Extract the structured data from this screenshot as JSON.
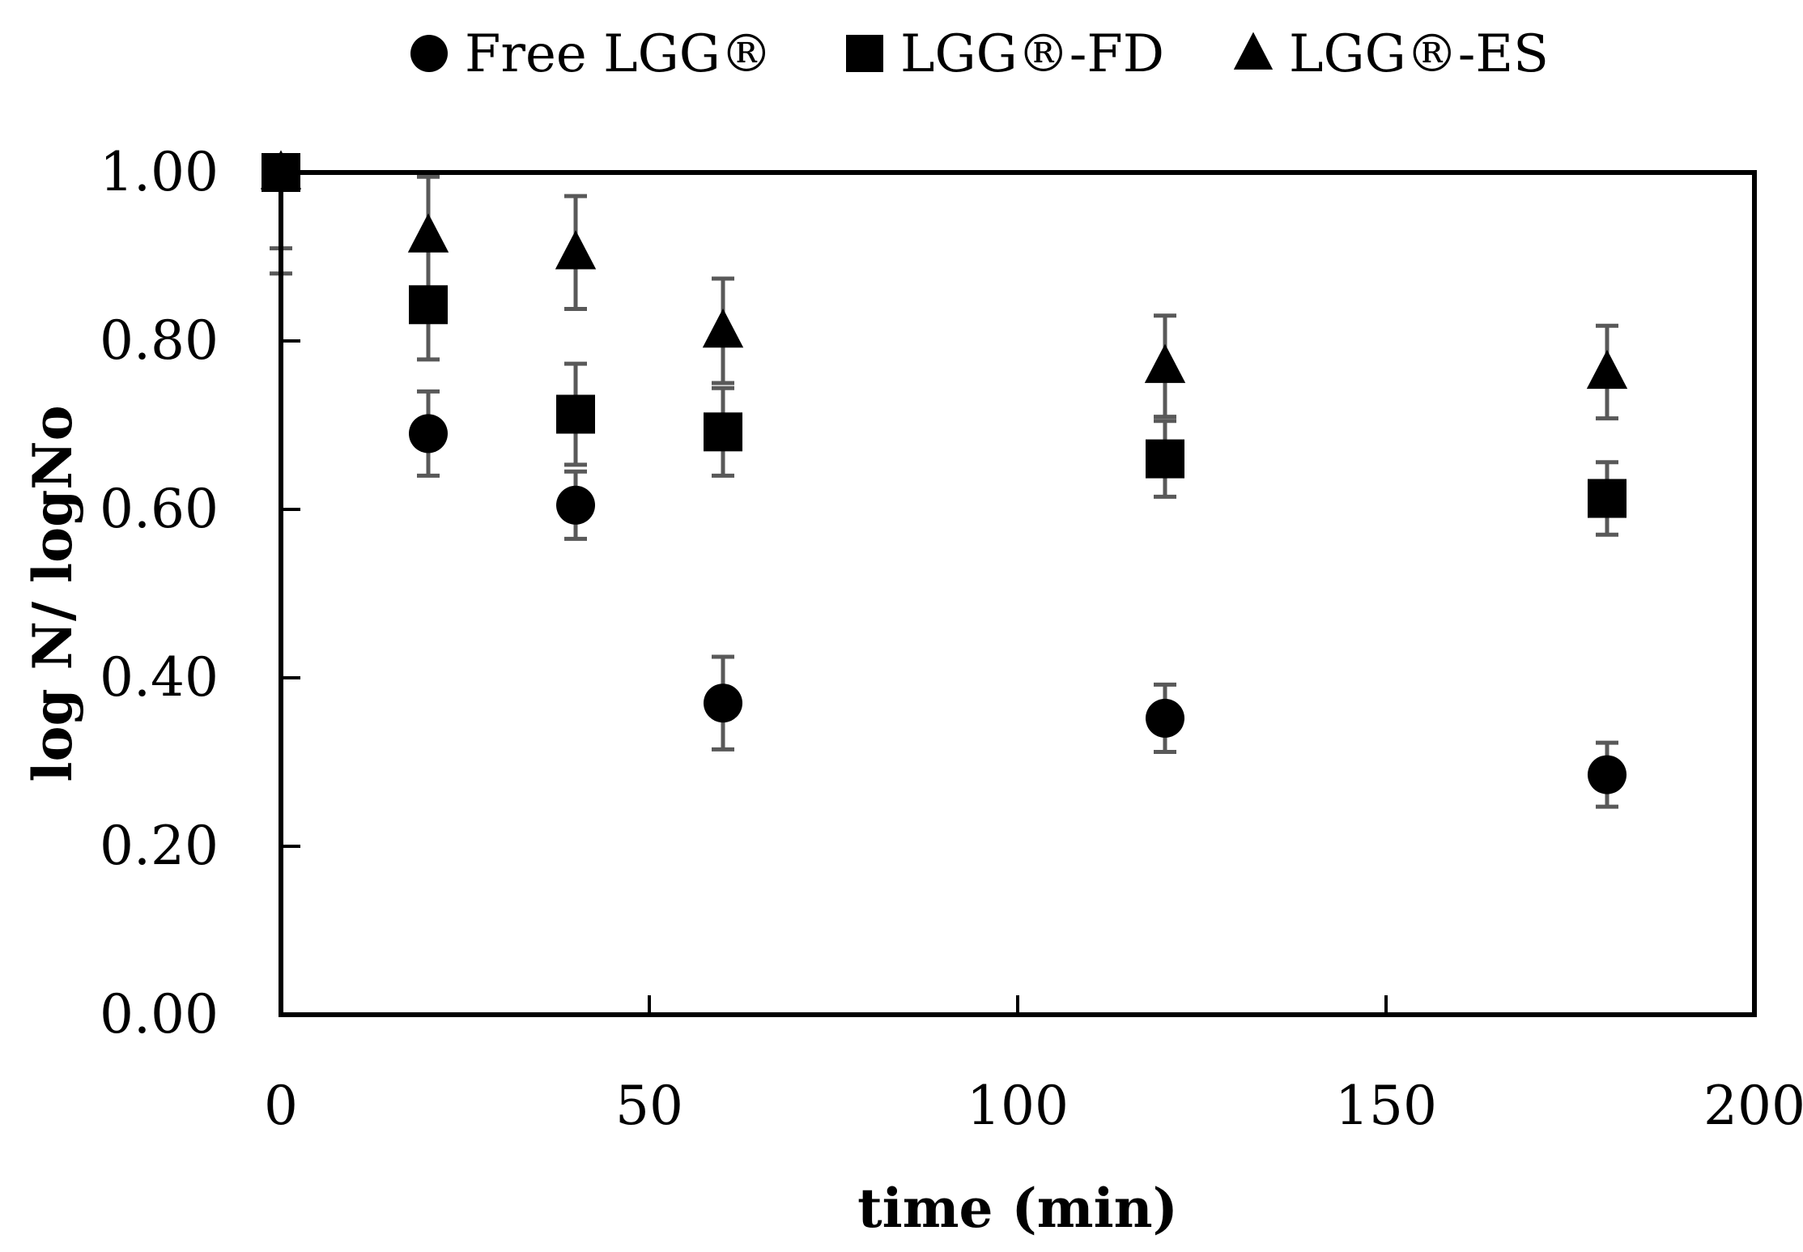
{
  "chart_data": {
    "type": "scatter",
    "title": "",
    "xlabel": "time (min)",
    "ylabel": "log N/ logNo",
    "xlim": [
      0,
      200
    ],
    "ylim": [
      0,
      1
    ],
    "x_ticks": [
      0,
      50,
      100,
      150,
      200
    ],
    "x_tick_labels": [
      "0",
      "50",
      "100",
      "150",
      "200"
    ],
    "y_ticks": [
      0,
      0.2,
      0.4,
      0.6,
      0.8,
      1.0
    ],
    "y_tick_labels": [
      "0.00",
      "0.20",
      "0.40",
      "0.60",
      "0.80",
      "1.00"
    ],
    "grid": false,
    "legend_position": "top",
    "series": [
      {
        "name": "Free LGG®",
        "marker": "circle",
        "x": [
          0,
          20,
          40,
          60,
          120,
          180
        ],
        "y": [
          1.0,
          0.69,
          0.605,
          0.37,
          0.352,
          0.285
        ],
        "err": [
          0.12,
          0.05,
          0.04,
          0.055,
          0.04,
          0.038
        ]
      },
      {
        "name": "LGG®-FD",
        "marker": "square",
        "x": [
          0,
          20,
          40,
          60,
          120,
          180
        ],
        "y": [
          1.0,
          0.843,
          0.713,
          0.692,
          0.66,
          0.613
        ],
        "err": [
          0.09,
          0.065,
          0.06,
          0.052,
          0.045,
          0.043
        ]
      },
      {
        "name": "LGG®-ES",
        "marker": "triangle",
        "x": [
          0,
          20,
          40,
          60,
          120,
          180
        ],
        "y": [
          1.0,
          0.925,
          0.905,
          0.812,
          0.77,
          0.763
        ],
        "err": [
          0.0,
          0.07,
          0.067,
          0.062,
          0.06,
          0.055
        ]
      }
    ]
  },
  "colors": {
    "marker": "#000000",
    "errorbar": "#595959",
    "axis": "#000000"
  }
}
